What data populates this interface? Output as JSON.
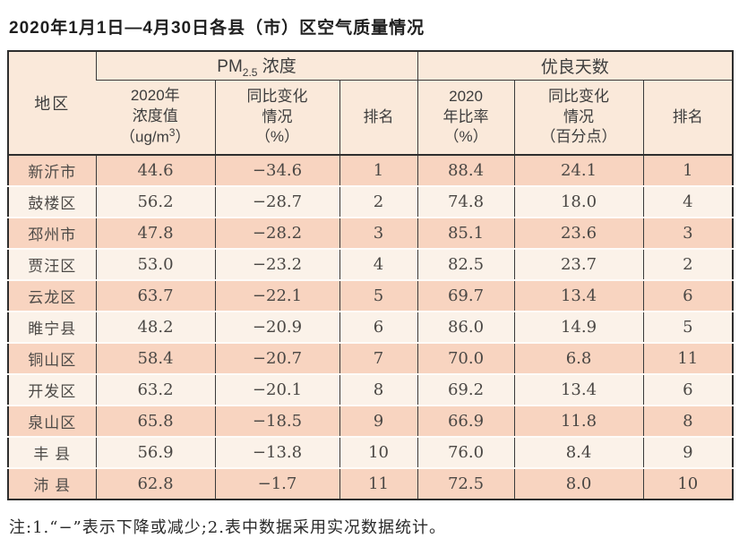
{
  "title": "2020年1月1日—4月30日各县（市）区空气质量情况",
  "note": "注:1.“−”表示下降或减少;2.表中数据采用实况数据统计。",
  "colors": {
    "header_bg": "#fae9da",
    "row_odd_bg": "#f8d4c0",
    "row_even_bg": "#fbf2e9",
    "border_dark": "#2e2e2e",
    "inner_border": "#3a3a3a",
    "text": "#4a4744",
    "title_text": "#1f1f1f"
  },
  "table": {
    "header": {
      "region": "地区",
      "pm25_group": {
        "prefix": "PM",
        "sub": "2.5",
        "suffix": " 浓度"
      },
      "ratio_group": "优良天数",
      "pm25_value": {
        "line1": "2020年",
        "line2": "浓度值",
        "unit_prefix": "（ug/m",
        "unit_sup": "3",
        "unit_suffix": "）"
      },
      "pm25_change": {
        "line1": "同比变化",
        "line2": "情况",
        "line3": "（%）"
      },
      "pm25_rank": "排名",
      "ratio_value": {
        "line1": "2020",
        "line2": "年比率",
        "line3": "（%）"
      },
      "ratio_change": {
        "line1": "同比变化",
        "line2": "情况",
        "line3": "（百分点）"
      },
      "ratio_rank": "排名"
    },
    "rows": [
      {
        "region": "新沂市",
        "pm25_value": "44.6",
        "pm25_change": "−34.6",
        "pm25_rank": "1",
        "ratio_value": "88.4",
        "ratio_change": "24.1",
        "ratio_rank": "1"
      },
      {
        "region": "鼓楼区",
        "pm25_value": "56.2",
        "pm25_change": "−28.7",
        "pm25_rank": "2",
        "ratio_value": "74.8",
        "ratio_change": "18.0",
        "ratio_rank": "4"
      },
      {
        "region": "邳州市",
        "pm25_value": "47.8",
        "pm25_change": "−28.2",
        "pm25_rank": "3",
        "ratio_value": "85.1",
        "ratio_change": "23.6",
        "ratio_rank": "3"
      },
      {
        "region": "贾汪区",
        "pm25_value": "53.0",
        "pm25_change": "−23.2",
        "pm25_rank": "4",
        "ratio_value": "82.5",
        "ratio_change": "23.7",
        "ratio_rank": "2"
      },
      {
        "region": "云龙区",
        "pm25_value": "63.7",
        "pm25_change": "−22.1",
        "pm25_rank": "5",
        "ratio_value": "69.7",
        "ratio_change": "13.4",
        "ratio_rank": "6"
      },
      {
        "region": "睢宁县",
        "pm25_value": "48.2",
        "pm25_change": "−20.9",
        "pm25_rank": "6",
        "ratio_value": "86.0",
        "ratio_change": "14.9",
        "ratio_rank": "5"
      },
      {
        "region": "铜山区",
        "pm25_value": "58.4",
        "pm25_change": "−20.7",
        "pm25_rank": "7",
        "ratio_value": "70.0",
        "ratio_change": "6.8",
        "ratio_rank": "11"
      },
      {
        "region": "开发区",
        "pm25_value": "63.2",
        "pm25_change": "−20.1",
        "pm25_rank": "8",
        "ratio_value": "69.2",
        "ratio_change": "13.4",
        "ratio_rank": "6"
      },
      {
        "region": "泉山区",
        "pm25_value": "65.8",
        "pm25_change": "−18.5",
        "pm25_rank": "9",
        "ratio_value": "66.9",
        "ratio_change": "11.8",
        "ratio_rank": "8"
      },
      {
        "region": "丰 县",
        "pm25_value": "56.9",
        "pm25_change": "−13.8",
        "pm25_rank": "10",
        "ratio_value": "76.0",
        "ratio_change": "8.4",
        "ratio_rank": "9"
      },
      {
        "region": "沛 县",
        "pm25_value": "62.8",
        "pm25_change": "−1.7",
        "pm25_rank": "11",
        "ratio_value": "72.5",
        "ratio_change": "8.0",
        "ratio_rank": "10"
      }
    ]
  },
  "chart_data": {
    "type": "table",
    "title": "2020年1月1日—4月30日各县（市）区空气质量情况",
    "column_groups": [
      "地区",
      "PM2.5浓度",
      "优良天数"
    ],
    "columns": [
      "地区",
      "2020年浓度值（ug/m3）",
      "同比变化情况（%）",
      "排名",
      "2020年比率（%）",
      "同比变化情况（百分点）",
      "排名"
    ],
    "rows": [
      [
        "新沂市",
        44.6,
        -34.6,
        1,
        88.4,
        24.1,
        1
      ],
      [
        "鼓楼区",
        56.2,
        -28.7,
        2,
        74.8,
        18.0,
        4
      ],
      [
        "邳州市",
        47.8,
        -28.2,
        3,
        85.1,
        23.6,
        3
      ],
      [
        "贾汪区",
        53.0,
        -23.2,
        4,
        82.5,
        23.7,
        2
      ],
      [
        "云龙区",
        63.7,
        -22.1,
        5,
        69.7,
        13.4,
        6
      ],
      [
        "睢宁县",
        48.2,
        -20.9,
        6,
        86.0,
        14.9,
        5
      ],
      [
        "铜山区",
        58.4,
        -20.7,
        7,
        70.0,
        6.8,
        11
      ],
      [
        "开发区",
        63.2,
        -20.1,
        8,
        69.2,
        13.4,
        6
      ],
      [
        "泉山区",
        65.8,
        -18.5,
        9,
        66.9,
        11.8,
        8
      ],
      [
        "丰县",
        56.9,
        -13.8,
        10,
        76.0,
        8.4,
        9
      ],
      [
        "沛县",
        62.8,
        -1.7,
        11,
        72.5,
        8.0,
        10
      ]
    ],
    "note": "注:1.“−”表示下降或减少;2.表中数据采用实况数据统计。"
  }
}
